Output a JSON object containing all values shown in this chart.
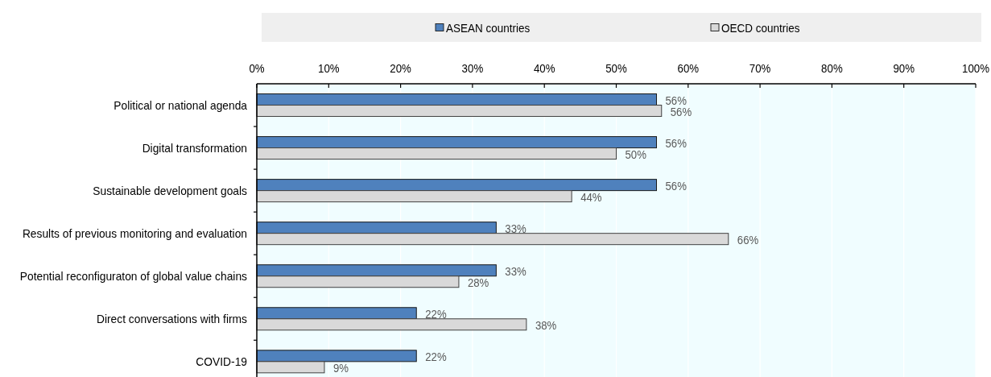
{
  "chart_data": {
    "type": "bar",
    "orientation": "horizontal",
    "categories": [
      "Political or national agenda",
      "Digital transformation",
      "Sustainable development goals",
      "Results of previous monitoring and evaluation",
      "Potential reconfiguraton of global value chains",
      "Direct conversations with firms",
      "COVID-19"
    ],
    "series": [
      {
        "name": "ASEAN countries",
        "color": "#4f81bd",
        "values": [
          55.6,
          55.6,
          55.6,
          33.3,
          33.3,
          22.2,
          22.2
        ],
        "value_labels": [
          "56%",
          "56%",
          "56%",
          "33%",
          "33%",
          "22%",
          "22%"
        ]
      },
      {
        "name": "OECD countries",
        "color": "#d9d9d9",
        "values": [
          56.3,
          50,
          43.8,
          65.6,
          28.1,
          37.5,
          9.4
        ],
        "value_labels": [
          "56%",
          "50%",
          "44%",
          "66%",
          "28%",
          "38%",
          "9%"
        ]
      }
    ],
    "xlim": [
      0,
      100
    ],
    "xticks": [
      {
        "value": 0,
        "label": "0%"
      },
      {
        "value": 10,
        "label": "10%"
      },
      {
        "value": 20,
        "label": "20%"
      },
      {
        "value": 30,
        "label": "30%"
      },
      {
        "value": 40,
        "label": "40%"
      },
      {
        "value": 50,
        "label": "50%"
      },
      {
        "value": 60,
        "label": "60%"
      },
      {
        "value": 70,
        "label": "70%"
      },
      {
        "value": 80,
        "label": "80%"
      },
      {
        "value": 90,
        "label": "90%"
      },
      {
        "value": 100,
        "label": "100%"
      }
    ],
    "grid": "x",
    "legend": "top"
  }
}
